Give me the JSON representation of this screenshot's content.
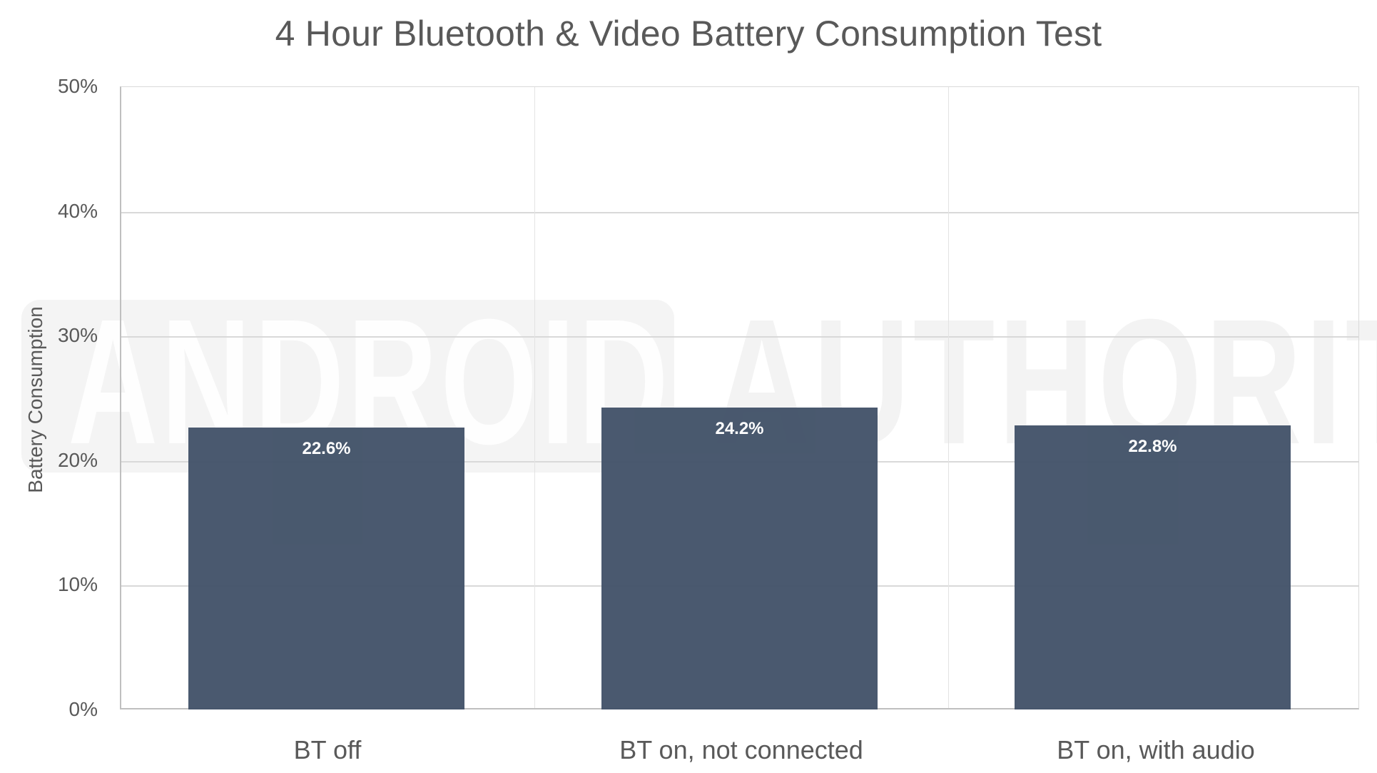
{
  "chart_data": {
    "type": "bar",
    "title": "4 Hour Bluetooth & Video Battery Consumption Test",
    "xlabel": "",
    "ylabel": "Battery Consumption",
    "categories": [
      "BT off",
      "BT on, not connected",
      "BT on, with audio"
    ],
    "values": [
      22.6,
      24.2,
      22.8
    ],
    "value_labels": [
      "22.6%",
      "24.2%",
      "22.8%"
    ],
    "ylim": [
      0,
      50
    ],
    "yticks": [
      "0%",
      "10%",
      "20%",
      "30%",
      "40%",
      "50%"
    ],
    "grid": true,
    "legend": null,
    "bar_color": "#44546A",
    "watermark": "ANDROID AUTHORITY"
  },
  "title": "4 Hour Bluetooth & Video Battery Consumption Test",
  "yaxis": {
    "label": "Battery Consumption",
    "ticks": [
      "0%",
      "10%",
      "20%",
      "30%",
      "40%",
      "50%"
    ]
  },
  "bars": [
    {
      "category": "BT off",
      "value": 22.6,
      "label": "22.6%"
    },
    {
      "category": "BT on, not connected",
      "value": 24.2,
      "label": "24.2%"
    },
    {
      "category": "BT on, with audio",
      "value": 22.8,
      "label": "22.8%"
    }
  ],
  "watermark": {
    "part1": "ANDROID",
    "part2": "AUTHORITY"
  }
}
